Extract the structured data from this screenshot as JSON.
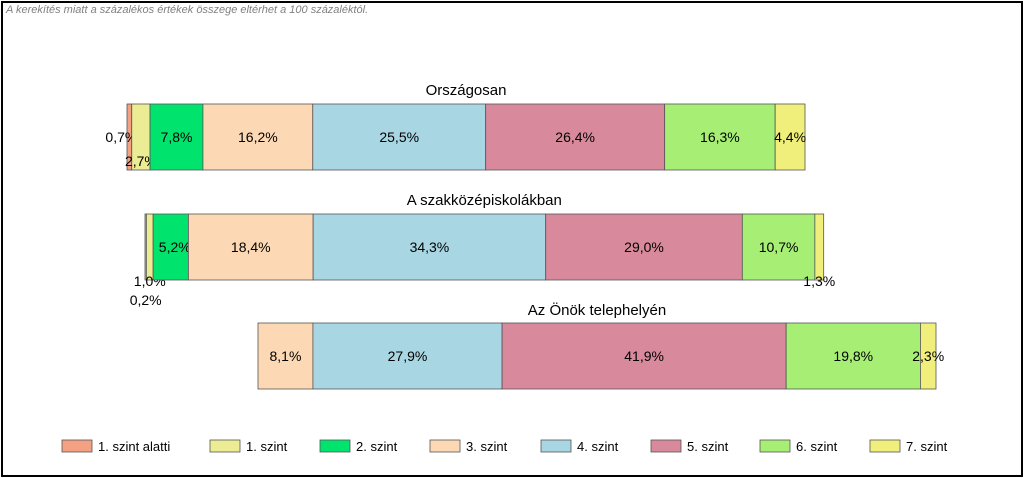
{
  "note": "A kerekítés miatt a  százalékos értékek összege eltérhet a 100 százaléktól.",
  "chart_data": {
    "type": "bar",
    "orientation": "horizontal",
    "stacked": true,
    "categories": [
      "1. szint alatti",
      "1. szint",
      "2. szint",
      "3. szint",
      "4. szint",
      "5. szint",
      "6. szint",
      "7. szint"
    ],
    "colors": [
      "#f4a083",
      "#ecec94",
      "#00e46e",
      "#fcd9b4",
      "#a8d6e3",
      "#d88a9c",
      "#a6ef74",
      "#f0ef7b"
    ],
    "bars": [
      {
        "title": "Országosan",
        "values": [
          0.7,
          2.7,
          7.8,
          16.2,
          25.5,
          26.4,
          16.3,
          4.4
        ],
        "labels": [
          "0,7%",
          "2,7%",
          "7,8%",
          "16,2%",
          "25,5%",
          "26,4%",
          "16,3%",
          "4,4%"
        ]
      },
      {
        "title": "A szakközépiskolákban",
        "values": [
          0.2,
          1.0,
          5.2,
          18.4,
          34.3,
          29.0,
          10.7,
          1.3
        ],
        "labels": [
          "0,2%",
          "1,0%",
          "5,2%",
          "18,4%",
          "34,3%",
          "29,0%",
          "10,7%",
          "1,3%"
        ]
      },
      {
        "title": "Az Önök telephelyén",
        "values": [
          0,
          0,
          0,
          8.1,
          27.9,
          41.9,
          19.8,
          2.3
        ],
        "labels": [
          "",
          "",
          "",
          "8,1%",
          "27,9%",
          "41,9%",
          "19,8%",
          "2,3%"
        ]
      }
    ]
  }
}
